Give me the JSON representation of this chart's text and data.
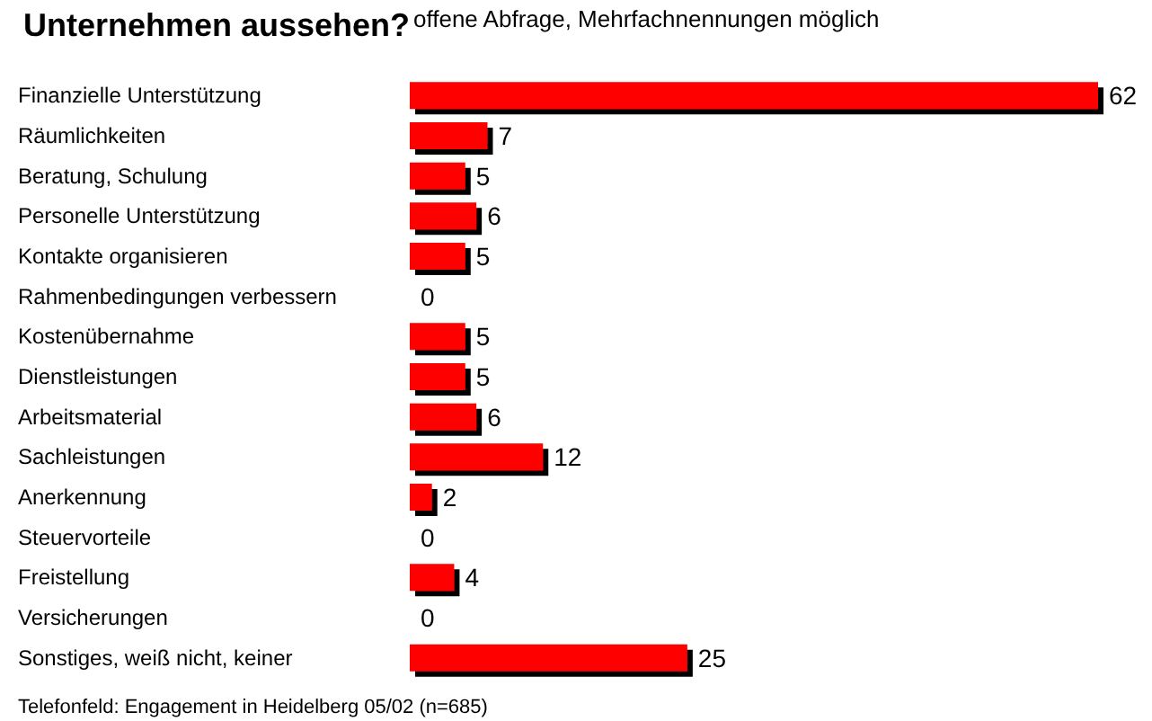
{
  "chart_data": {
    "type": "bar",
    "orientation": "horizontal",
    "title": "Unternehmen aussehen?",
    "subtitle": "offene Abfrage, Mehrfachnennungen möglich",
    "categories": [
      "Finanzielle Unterstützung",
      "Räumlichkeiten",
      "Beratung, Schulung",
      "Personelle Unterstützung",
      "Kontakte organisieren",
      "Rahmenbedingungen verbessern",
      "Kostenübernahme",
      "Dienstleistungen",
      "Arbeitsmaterial",
      "Sachleistungen",
      "Anerkennung",
      "Steuervorteile",
      "Freistellung",
      "Versicherungen",
      "Sonstiges, weiß nicht, keiner"
    ],
    "values": [
      62,
      7,
      5,
      6,
      5,
      0,
      5,
      5,
      6,
      12,
      2,
      0,
      4,
      0,
      25
    ],
    "color": "#ff0000",
    "data_labels": true,
    "annotations": [
      "Telefonfeld: Engagement in Heidelberg 05/02 (n=685)"
    ]
  }
}
